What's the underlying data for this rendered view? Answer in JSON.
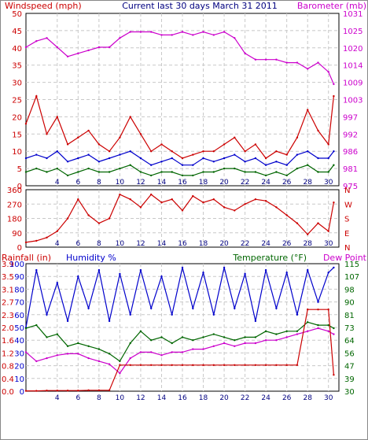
{
  "panel1": {
    "title": "Current last 30 days March 31 2011",
    "left_label": "Windspeed (mph)",
    "right_label": "Barometer (mb)",
    "left_ticks": [
      0,
      5,
      10,
      15,
      20,
      25,
      30,
      35,
      40,
      45,
      50
    ],
    "right_ticks": [
      975,
      981,
      986,
      992,
      997,
      1003,
      1009,
      1014,
      1020,
      1025,
      1031
    ],
    "colors": {
      "left": "#cc0000",
      "right": "#cc00cc",
      "title": "#000080"
    }
  },
  "panel2": {
    "left_ticks": [
      0,
      90,
      180,
      270,
      360
    ],
    "right_ticks": [
      "N",
      "E",
      "S",
      "W",
      "N"
    ]
  },
  "panel3": {
    "rain_label": "Rainfall (in)",
    "hum_label": "Humidity %",
    "temp_label": "Temperature (°F)",
    "dew_label": "Dew Point",
    "rain_ticks": [
      "0.0",
      "0.4",
      "0.8",
      "1.2",
      "1.6",
      "2.0",
      "2.3",
      "2.7",
      "3.1",
      "3.5",
      "3.9"
    ],
    "hum_ticks": [
      0,
      10,
      20,
      30,
      40,
      50,
      60,
      70,
      80,
      90,
      100
    ],
    "temp_ticks": [
      30,
      39,
      47,
      56,
      64,
      73,
      81,
      90,
      98,
      107,
      115
    ],
    "colors": {
      "rain": "#cc0000",
      "hum": "#0000cc",
      "temp": "#006600",
      "dew": "#cc00cc"
    }
  },
  "x_ticks": [
    4,
    6,
    8,
    10,
    12,
    14,
    16,
    18,
    20,
    22,
    24,
    26,
    28,
    30
  ],
  "chart_data": [
    {
      "type": "line",
      "xlabel": "",
      "ylabel": "Windspeed (mph)",
      "x": [
        1,
        2,
        3,
        4,
        5,
        6,
        7,
        8,
        9,
        10,
        11,
        12,
        13,
        14,
        15,
        16,
        17,
        18,
        19,
        20,
        21,
        22,
        23,
        24,
        25,
        26,
        27,
        28,
        29,
        30,
        30.5
      ],
      "xlim": [
        1,
        31
      ],
      "ylim": [
        0,
        50
      ],
      "y2label": "Barometer (mb)",
      "y2lim": [
        975,
        1031
      ],
      "series": [
        {
          "name": "",
          "color": "#cc0000",
          "axis": "left",
          "values": [
            18,
            26,
            15,
            20,
            12,
            14,
            16,
            12,
            10,
            14,
            20,
            15,
            10,
            12,
            10,
            8,
            9,
            10,
            10,
            12,
            14,
            10,
            12,
            8,
            10,
            9,
            14,
            22,
            16,
            12,
            26
          ]
        },
        {
          "name": "",
          "color": "#0000cc",
          "axis": "left",
          "values": [
            8,
            9,
            8,
            10,
            7,
            8,
            9,
            7,
            8,
            9,
            10,
            8,
            6,
            7,
            8,
            6,
            6,
            8,
            7,
            8,
            9,
            7,
            8,
            6,
            7,
            6,
            9,
            10,
            8,
            8,
            10
          ]
        },
        {
          "name": "",
          "color": "#006600",
          "axis": "left",
          "values": [
            4,
            5,
            4,
            5,
            3,
            4,
            5,
            4,
            4,
            5,
            6,
            4,
            3,
            4,
            4,
            3,
            3,
            4,
            4,
            5,
            5,
            4,
            4,
            3,
            4,
            3,
            5,
            6,
            4,
            4,
            6
          ]
        },
        {
          "name": "",
          "color": "#cc00cc",
          "axis": "right",
          "values": [
            1020,
            1022,
            1023,
            1020,
            1017,
            1018,
            1019,
            1020,
            1020,
            1023,
            1025,
            1025,
            1025,
            1024,
            1024,
            1025,
            1024,
            1025,
            1024,
            1025,
            1023,
            1018,
            1016,
            1016,
            1016,
            1015,
            1015,
            1013,
            1015,
            1012,
            1008
          ]
        }
      ]
    },
    {
      "type": "line",
      "xlabel": "",
      "ylabel": "Wind direction",
      "x": [
        1,
        2,
        3,
        4,
        5,
        6,
        7,
        8,
        9,
        10,
        11,
        12,
        13,
        14,
        15,
        16,
        17,
        18,
        19,
        20,
        21,
        22,
        23,
        24,
        25,
        26,
        27,
        28,
        29,
        30,
        30.5
      ],
      "xlim": [
        1,
        31
      ],
      "ylim": [
        0,
        360
      ],
      "series": [
        {
          "name": "",
          "color": "#cc0000",
          "values": [
            30,
            40,
            60,
            100,
            180,
            300,
            200,
            150,
            180,
            330,
            300,
            250,
            330,
            280,
            300,
            230,
            320,
            280,
            300,
            250,
            230,
            270,
            300,
            290,
            250,
            200,
            150,
            80,
            150,
            100,
            280
          ]
        }
      ]
    },
    {
      "type": "line",
      "xlabel": "",
      "ylabel": "Humidity %",
      "x": [
        1,
        2,
        3,
        4,
        5,
        6,
        7,
        8,
        9,
        10,
        11,
        12,
        13,
        14,
        15,
        16,
        17,
        18,
        19,
        20,
        21,
        22,
        23,
        24,
        25,
        26,
        27,
        28,
        29,
        30,
        30.5
      ],
      "xlim": [
        1,
        31
      ],
      "ylim": [
        0,
        100
      ],
      "y2label": "Temperature (°F)",
      "y2lim": [
        30,
        115
      ],
      "series": [
        {
          "name": "",
          "color": "#0000cc",
          "axis": "left",
          "values": [
            50,
            95,
            60,
            85,
            55,
            90,
            65,
            95,
            55,
            92,
            60,
            95,
            65,
            90,
            60,
            97,
            65,
            93,
            60,
            97,
            65,
            92,
            55,
            95,
            65,
            93,
            60,
            95,
            70,
            93,
            97
          ]
        },
        {
          "name": "",
          "color": "#006600",
          "axis": "right",
          "values": [
            72,
            74,
            66,
            68,
            60,
            62,
            60,
            58,
            55,
            50,
            62,
            70,
            64,
            66,
            62,
            66,
            64,
            66,
            68,
            66,
            64,
            66,
            66,
            70,
            68,
            70,
            70,
            76,
            74,
            74,
            72
          ]
        },
        {
          "name": "",
          "color": "#cc00cc",
          "axis": "right",
          "values": [
            56,
            50,
            52,
            54,
            55,
            55,
            52,
            50,
            48,
            42,
            52,
            56,
            56,
            54,
            56,
            56,
            58,
            58,
            60,
            62,
            60,
            62,
            62,
            64,
            64,
            66,
            68,
            70,
            72,
            70,
            68
          ]
        },
        {
          "name": "",
          "color": "#cc0000",
          "axis": "rain",
          "ylim": [
            0,
            3.9
          ],
          "values": [
            0.01,
            0.01,
            0.02,
            0.02,
            0.02,
            0.02,
            0.03,
            0.03,
            0.03,
            0.8,
            0.8,
            0.8,
            0.8,
            0.8,
            0.8,
            0.8,
            0.8,
            0.8,
            0.8,
            0.8,
            0.8,
            0.8,
            0.8,
            0.8,
            0.8,
            0.8,
            0.8,
            2.5,
            2.5,
            2.5,
            0.5
          ]
        }
      ]
    }
  ]
}
